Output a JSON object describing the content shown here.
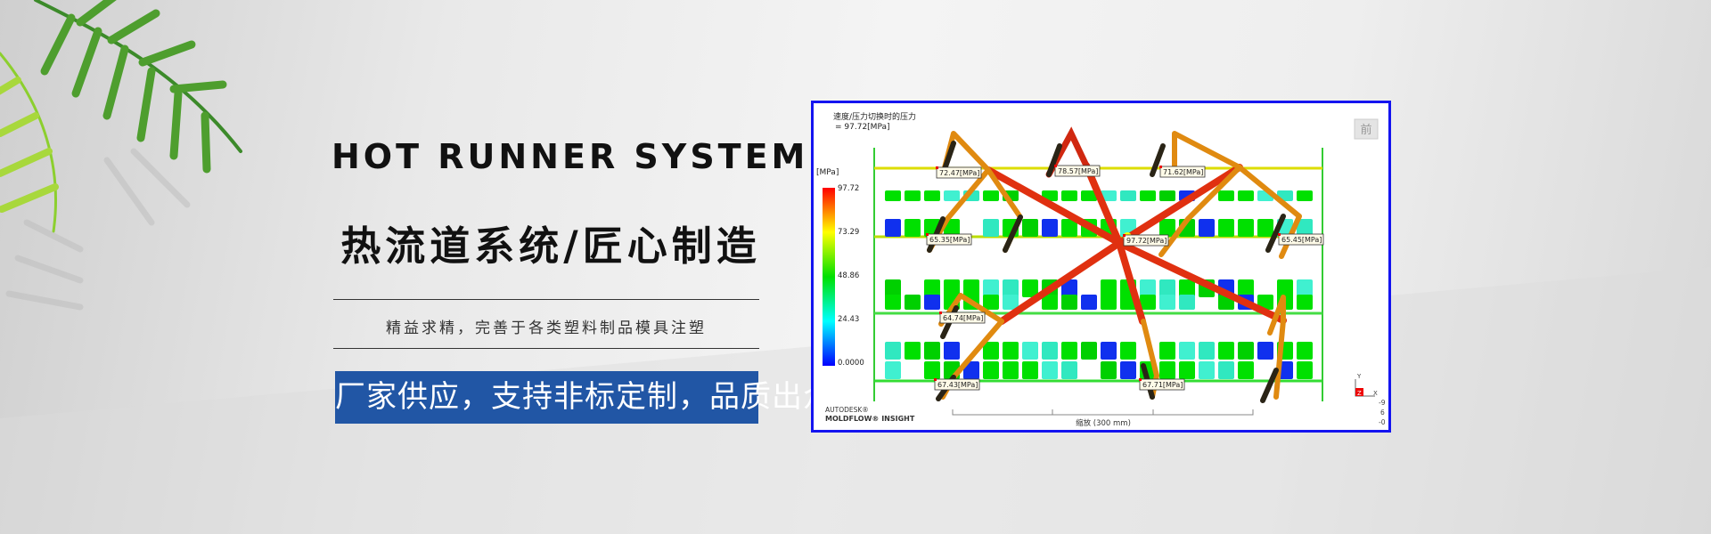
{
  "banner": {
    "en_title": "HOT RUNNER SYSTEM",
    "cn_title": "热流道系统/匠心制造",
    "subtitle": "精益求精，完善于各类塑料制品模具注塑",
    "cta": "厂家供应，支持非标定制，品质出众",
    "accent_color": "#2156a5"
  },
  "simulation": {
    "title": "速度/压力切换时的压力",
    "value": "= 97.72[MPa]",
    "unit": "[MPa]",
    "scale_ticks": [
      "97.72",
      "73.29",
      "48.86",
      "24.43",
      "0.0000"
    ],
    "pressure_labels": [
      "72.47[MPa]",
      "78.57[MPa]",
      "71.62[MPa]",
      "65.35[MPa]",
      "97.72[MPa]",
      "65.45[MPa]",
      "64.74[MPa]",
      "67.43[MPa]",
      "67.71[MPa]"
    ],
    "view_button": "前",
    "brand_line1": "AUTODESK®",
    "brand_line2": "MOLDFLOW® INSIGHT",
    "scale_text": "缩放 (300 mm)",
    "axis_y": "Y",
    "axis_z": "Z",
    "axis_x": "X",
    "angles": [
      "-9",
      "6",
      "-0"
    ],
    "border_color": "#1414f0"
  }
}
